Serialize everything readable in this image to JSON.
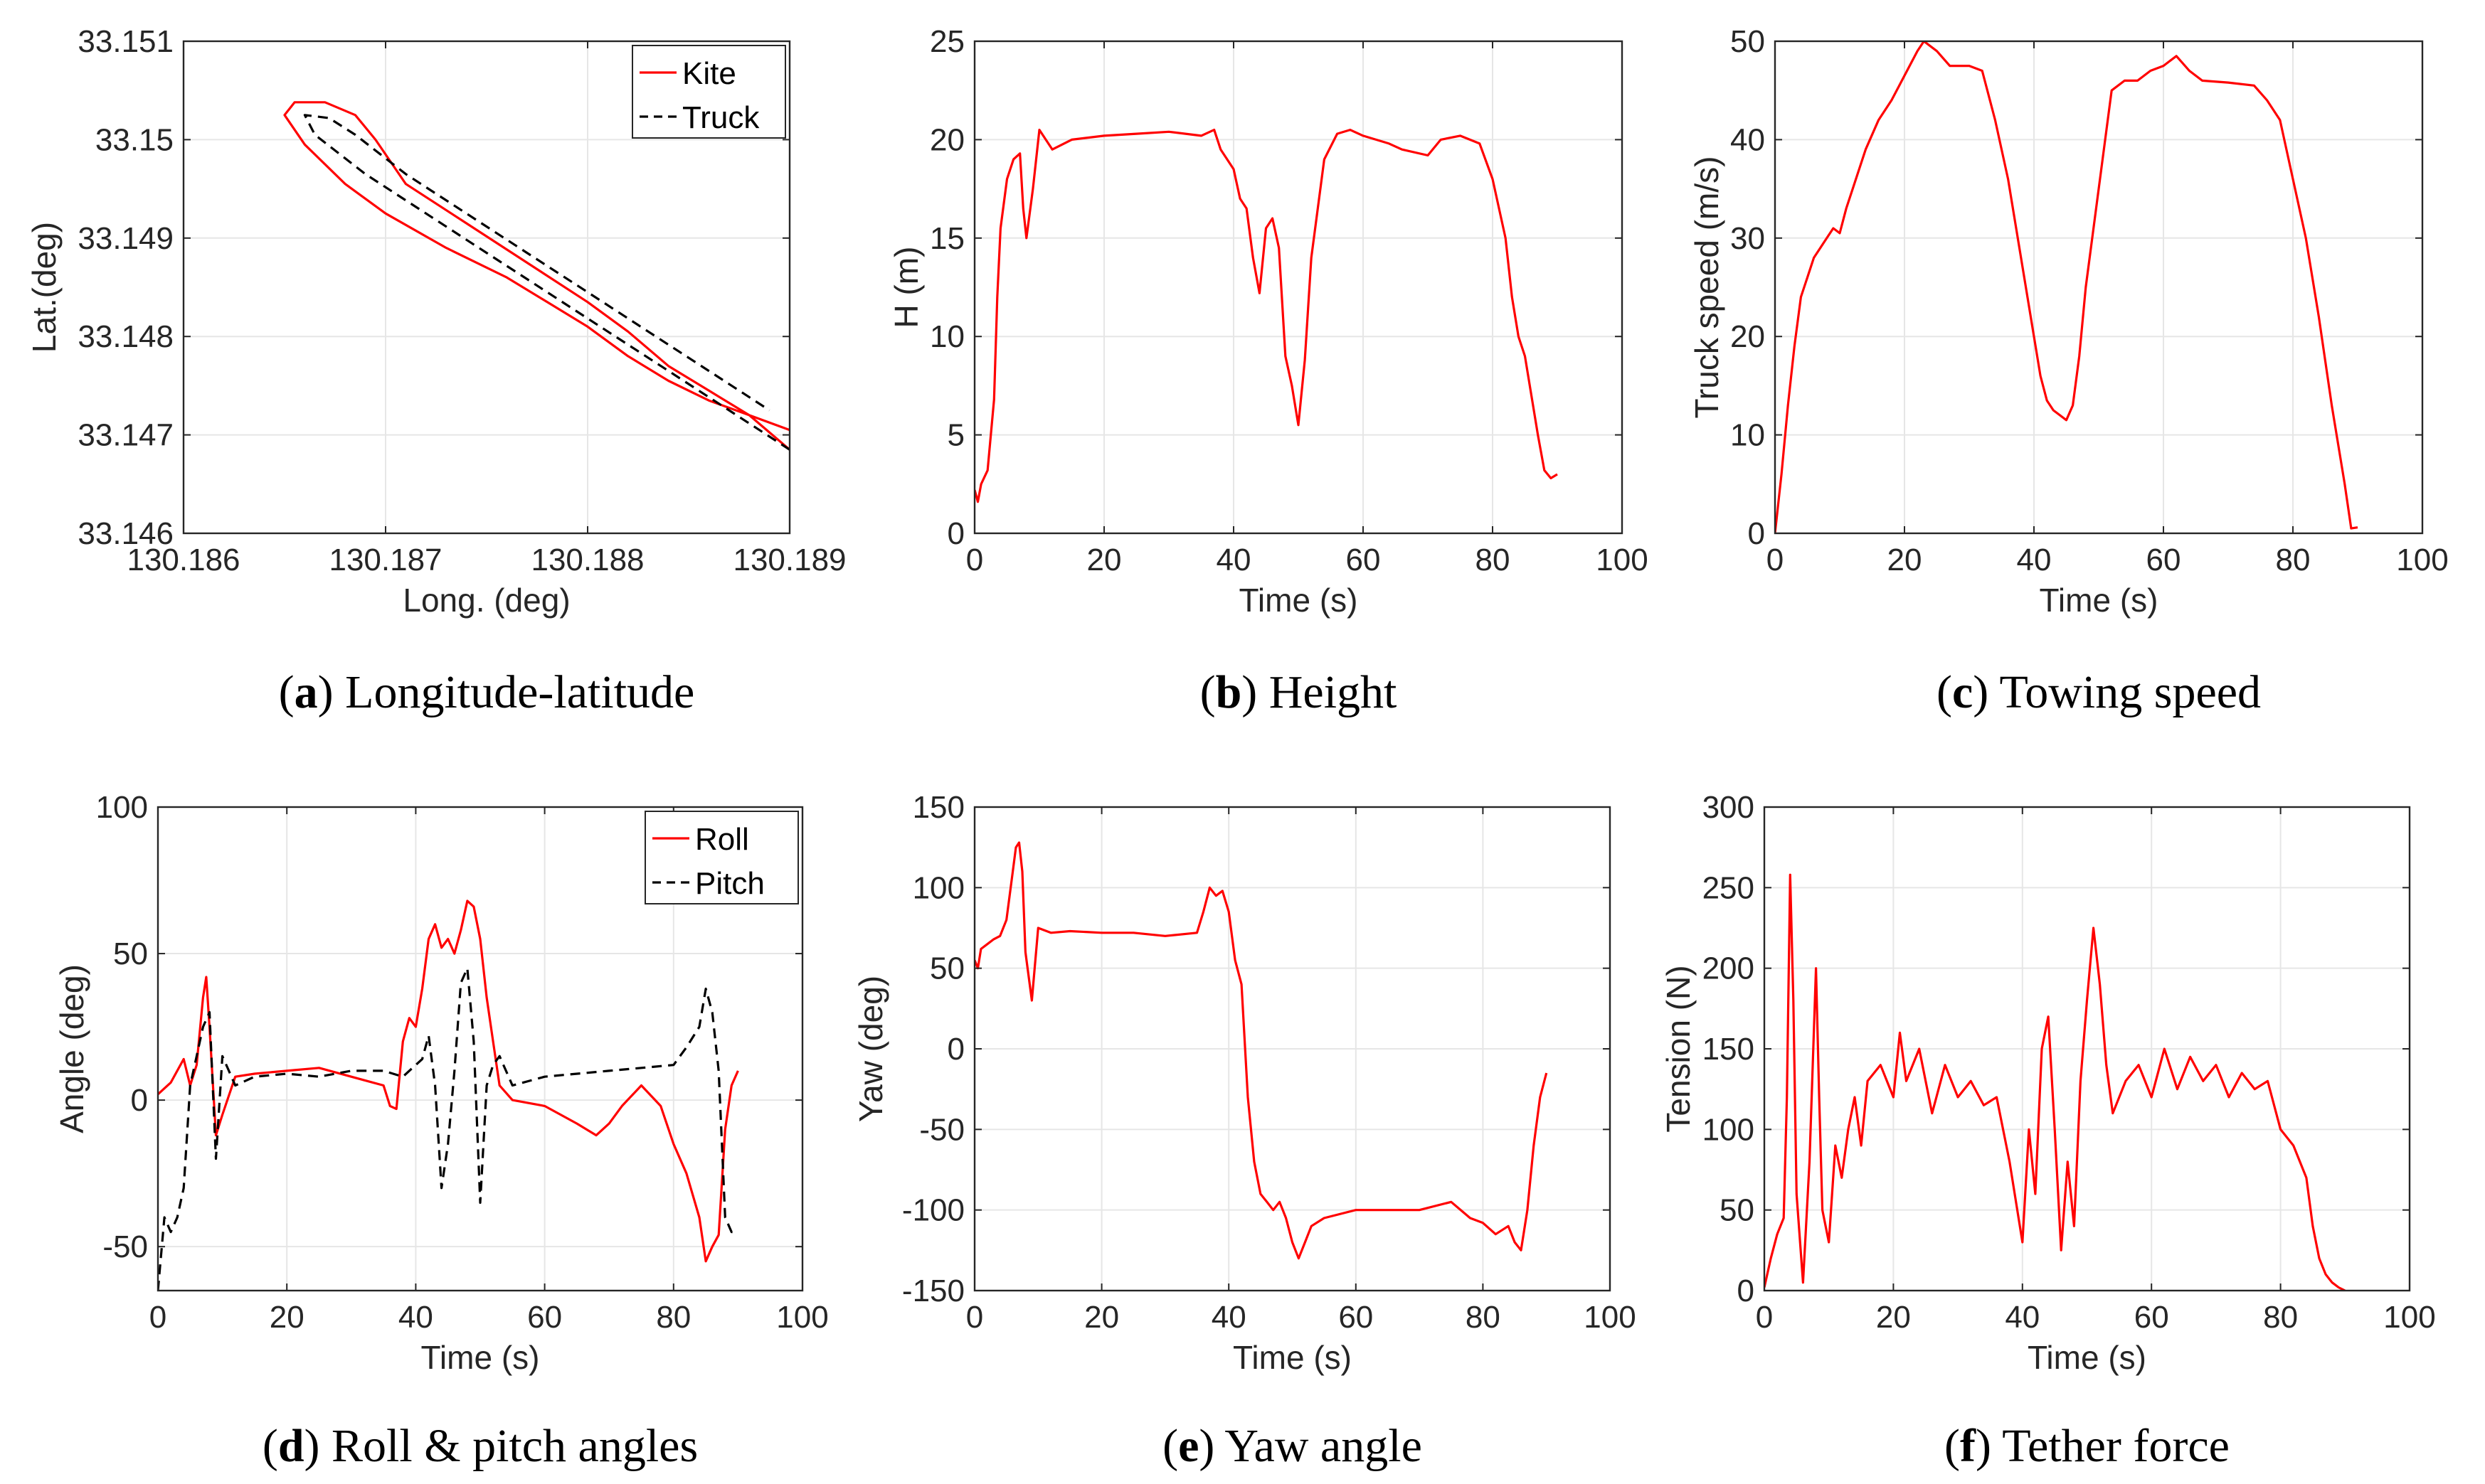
{
  "chart_data": [
    {
      "id": "a",
      "type": "line",
      "caption_letter": "a",
      "caption_text": "Longitude-latitude",
      "xlabel": "Long. (deg)",
      "ylabel": "Lat.(deg)",
      "xlim": [
        130.186,
        130.189
      ],
      "ylim": [
        33.146,
        33.151
      ],
      "xticks": [
        130.186,
        130.187,
        130.188,
        130.189
      ],
      "xtick_labels": [
        "130.186",
        "130.187",
        "130.188",
        "130.189"
      ],
      "yticks": [
        33.146,
        33.147,
        33.148,
        33.149,
        33.15,
        33.151
      ],
      "ytick_labels": [
        "33.146",
        "33.147",
        "33.148",
        "33.149",
        "33.15",
        "33.151"
      ],
      "legend": "top-right",
      "series": [
        {
          "name": "Kite",
          "color": "#ff0000",
          "style": "solid",
          "x": [
            130.189,
            130.1888,
            130.1886,
            130.1884,
            130.1882,
            130.188,
            130.1878,
            130.1876,
            130.1873,
            130.187,
            130.1868,
            130.1866,
            130.1865,
            130.18655,
            130.1867,
            130.18685,
            130.18695,
            130.1871,
            130.1874,
            130.1877,
            130.188,
            130.1882,
            130.1884,
            130.1886,
            130.1888,
            130.189
          ],
          "y": [
            33.14705,
            33.1472,
            33.14735,
            33.14755,
            33.1478,
            33.1481,
            33.14835,
            33.1486,
            33.1489,
            33.14925,
            33.14955,
            33.14995,
            33.15025,
            33.15038,
            33.15038,
            33.15025,
            33.15,
            33.14955,
            33.14915,
            33.14875,
            33.14835,
            33.14805,
            33.1477,
            33.14745,
            33.1472,
            33.14685
          ]
        },
        {
          "name": "Truck",
          "color": "#000000",
          "style": "dashed",
          "x": [
            130.189,
            130.1887,
            130.1884,
            130.1881,
            130.1878,
            130.1875,
            130.1872,
            130.1869,
            130.18665,
            130.1866,
            130.18672,
            130.18685,
            130.1871,
            130.1874,
            130.1877,
            130.188,
            130.1883,
            130.1886,
            130.1889
          ],
          "y": [
            33.14685,
            33.14725,
            33.14765,
            33.14805,
            33.14845,
            33.14885,
            33.14925,
            33.14965,
            33.15005,
            33.15025,
            33.15022,
            33.15005,
            33.14965,
            33.14925,
            33.14885,
            33.14845,
            33.14805,
            33.14765,
            33.14725
          ]
        }
      ]
    },
    {
      "id": "b",
      "type": "line",
      "caption_letter": "b",
      "caption_text": "Height",
      "xlabel": "Time (s)",
      "ylabel": "H (m)",
      "xlim": [
        0,
        100
      ],
      "ylim": [
        0,
        25
      ],
      "xticks": [
        0,
        20,
        40,
        60,
        80,
        100
      ],
      "xtick_labels": [
        "0",
        "20",
        "40",
        "60",
        "80",
        "100"
      ],
      "yticks": [
        0,
        5,
        10,
        15,
        20,
        25
      ],
      "ytick_labels": [
        "0",
        "5",
        "10",
        "15",
        "20",
        "25"
      ],
      "series": [
        {
          "name": "H",
          "color": "#ff0000",
          "style": "solid",
          "x": [
            0,
            0.5,
            1,
            2,
            3,
            3.5,
            4,
            5,
            6,
            7,
            7.5,
            8,
            9,
            10,
            12,
            15,
            20,
            25,
            30,
            35,
            37,
            38,
            40,
            41,
            42,
            43,
            44,
            45,
            46,
            47,
            48,
            49,
            50,
            51,
            52,
            54,
            56,
            58,
            60,
            62,
            64,
            66,
            70,
            72,
            75,
            78,
            80,
            82,
            83,
            84,
            85,
            86,
            87,
            88,
            89,
            90
          ],
          "y": [
            2.2,
            1.6,
            2.5,
            3.2,
            6.8,
            12,
            15.5,
            18,
            19,
            19.3,
            16.5,
            15,
            17.5,
            20.5,
            19.5,
            20,
            20.2,
            20.3,
            20.4,
            20.2,
            20.5,
            19.5,
            18.5,
            17,
            16.5,
            14,
            12.2,
            15.5,
            16,
            14.5,
            9,
            7.5,
            5.5,
            8.8,
            14,
            19,
            20.3,
            20.5,
            20.2,
            20,
            19.8,
            19.5,
            19.2,
            20,
            20.2,
            19.8,
            18,
            15,
            12,
            10,
            9,
            7,
            5,
            3.2,
            2.8,
            3.0
          ]
        }
      ]
    },
    {
      "id": "c",
      "type": "line",
      "caption_letter": "c",
      "caption_text": "Towing speed",
      "xlabel": "Time (s)",
      "ylabel": "Truck speed (m/s)",
      "xlim": [
        0,
        100
      ],
      "ylim": [
        0,
        50
      ],
      "xticks": [
        0,
        20,
        40,
        60,
        80,
        100
      ],
      "xtick_labels": [
        "0",
        "20",
        "40",
        "60",
        "80",
        "100"
      ],
      "yticks": [
        0,
        10,
        20,
        30,
        40,
        50
      ],
      "ytick_labels": [
        "0",
        "10",
        "20",
        "30",
        "40",
        "50"
      ],
      "series": [
        {
          "name": "Truck speed",
          "color": "#ff0000",
          "style": "solid",
          "x": [
            0,
            1,
            2,
            3,
            4,
            5,
            6,
            8,
            9,
            10,
            11,
            12,
            14,
            16,
            18,
            20,
            22,
            23,
            25,
            27,
            30,
            32,
            34,
            36,
            38,
            40,
            41,
            42,
            43,
            44,
            45,
            46,
            47,
            48,
            50,
            52,
            54,
            56,
            58,
            60,
            62,
            64,
            66,
            70,
            74,
            76,
            78,
            80,
            82,
            84,
            86,
            88,
            89,
            90
          ],
          "y": [
            0,
            6,
            13,
            19,
            24,
            26,
            28,
            30,
            31,
            30.5,
            33,
            35,
            39,
            42,
            44,
            46.5,
            49,
            50,
            49,
            47.5,
            47.5,
            47,
            42,
            36,
            28,
            20,
            16,
            13.5,
            12.5,
            12,
            11.5,
            13,
            18,
            25,
            35,
            45,
            46,
            46,
            47,
            47.5,
            48.5,
            47,
            46,
            45.8,
            45.5,
            44,
            42,
            36,
            30,
            22,
            13,
            5,
            0.5,
            0.6
          ]
        }
      ]
    },
    {
      "id": "d",
      "type": "line",
      "caption_letter": "d",
      "caption_text": "Roll & pitch angles",
      "xlabel": "Time (s)",
      "ylabel": "Angle (deg)",
      "xlim": [
        0,
        100
      ],
      "ylim": [
        -65,
        100
      ],
      "xticks": [
        0,
        20,
        40,
        60,
        80,
        100
      ],
      "xtick_labels": [
        "0",
        "20",
        "40",
        "60",
        "80",
        "100"
      ],
      "yticks": [
        -50,
        0,
        50,
        100
      ],
      "ytick_labels": [
        "-50",
        "0",
        "50",
        "100"
      ],
      "legend": "top-right",
      "series": [
        {
          "name": "Roll",
          "color": "#ff0000",
          "style": "solid",
          "x": [
            0,
            2,
            4,
            5,
            6,
            7,
            7.5,
            8,
            9,
            10,
            12,
            15,
            20,
            25,
            30,
            35,
            36,
            37,
            38,
            39,
            40,
            41,
            42,
            43,
            44,
            45,
            46,
            47,
            48,
            49,
            50,
            51,
            52,
            53,
            55,
            60,
            65,
            68,
            70,
            72,
            75,
            78,
            80,
            82,
            84,
            85,
            86,
            87,
            88,
            89,
            90
          ],
          "y": [
            2,
            6,
            14,
            5,
            12,
            35,
            42,
            25,
            -12,
            -5,
            8,
            9,
            10,
            11,
            8,
            5,
            -2,
            -3,
            20,
            28,
            25,
            38,
            55,
            60,
            52,
            55,
            50,
            58,
            68,
            66,
            55,
            35,
            20,
            5,
            0,
            -2,
            -8,
            -12,
            -8,
            -2,
            5,
            -2,
            -15,
            -25,
            -40,
            -55,
            -50,
            -46,
            -10,
            5,
            10
          ]
        },
        {
          "name": "Pitch",
          "color": "#000000",
          "style": "dashed",
          "x": [
            0,
            1,
            2,
            3,
            4,
            5,
            6,
            7,
            8,
            9,
            10,
            11,
            12,
            15,
            20,
            25,
            30,
            35,
            38,
            40,
            41,
            42,
            43,
            44,
            45,
            46,
            47,
            48,
            49,
            50,
            51,
            52,
            53,
            55,
            60,
            70,
            80,
            82,
            84,
            85,
            86,
            87,
            88,
            89,
            90
          ],
          "y": [
            -65,
            -40,
            -45,
            -40,
            -30,
            5,
            15,
            25,
            30,
            -20,
            15,
            10,
            5,
            8,
            9,
            8,
            10,
            10,
            8,
            12,
            14,
            22,
            5,
            -30,
            -15,
            10,
            40,
            45,
            20,
            -35,
            5,
            12,
            15,
            5,
            8,
            10,
            12,
            18,
            25,
            38,
            30,
            10,
            -40,
            -45,
            -45
          ]
        }
      ]
    },
    {
      "id": "e",
      "type": "line",
      "caption_letter": "e",
      "caption_text": "Yaw angle",
      "xlabel": "Time (s)",
      "ylabel": "Yaw (deg)",
      "xlim": [
        0,
        100
      ],
      "ylim": [
        -150,
        150
      ],
      "xticks": [
        0,
        20,
        40,
        60,
        80,
        100
      ],
      "xtick_labels": [
        "0",
        "20",
        "40",
        "60",
        "80",
        "100"
      ],
      "yticks": [
        -150,
        -100,
        -50,
        0,
        50,
        100,
        150
      ],
      "ytick_labels": [
        "-150",
        "-100",
        "-50",
        "0",
        "50",
        "100",
        "150"
      ],
      "series": [
        {
          "name": "Yaw",
          "color": "#ff0000",
          "style": "solid",
          "x": [
            0,
            0.5,
            1,
            2,
            3,
            4,
            5,
            6,
            6.5,
            7,
            7.5,
            8,
            9,
            10,
            12,
            15,
            20,
            25,
            30,
            35,
            36,
            37,
            38,
            39,
            40,
            41,
            42,
            43,
            44,
            45,
            46,
            47,
            48,
            49,
            50,
            51,
            52,
            53,
            55,
            60,
            65,
            70,
            75,
            78,
            80,
            82,
            84,
            85,
            86,
            87,
            88,
            89,
            90
          ],
          "y": [
            55,
            50,
            62,
            65,
            68,
            70,
            80,
            110,
            125,
            128,
            110,
            60,
            30,
            75,
            72,
            73,
            72,
            72,
            70,
            72,
            85,
            100,
            95,
            98,
            85,
            55,
            40,
            -30,
            -70,
            -90,
            -95,
            -100,
            -95,
            -105,
            -120,
            -130,
            -120,
            -110,
            -105,
            -100,
            -100,
            -100,
            -95,
            -105,
            -108,
            -115,
            -110,
            -120,
            -125,
            -100,
            -60,
            -30,
            -15
          ]
        }
      ]
    },
    {
      "id": "f",
      "type": "line",
      "caption_letter": "f",
      "caption_text": "Tether force",
      "xlabel": "Time (s)",
      "ylabel": "Tension (N)",
      "xlim": [
        0,
        100
      ],
      "ylim": [
        0,
        300
      ],
      "xticks": [
        0,
        20,
        40,
        60,
        80,
        100
      ],
      "xtick_labels": [
        "0",
        "20",
        "40",
        "60",
        "80",
        "100"
      ],
      "yticks": [
        0,
        50,
        100,
        150,
        200,
        250,
        300
      ],
      "ytick_labels": [
        "0",
        "50",
        "100",
        "150",
        "200",
        "250",
        "300"
      ],
      "series": [
        {
          "name": "Tension",
          "color": "#ff0000",
          "style": "solid",
          "x": [
            0,
            1,
            2,
            3,
            3.5,
            4,
            4.5,
            5,
            6,
            7,
            8,
            8.5,
            9,
            10,
            11,
            12,
            13,
            14,
            15,
            16,
            18,
            20,
            21,
            22,
            24,
            26,
            28,
            30,
            32,
            34,
            36,
            38,
            40,
            41,
            42,
            43,
            44,
            45,
            46,
            47,
            48,
            49,
            50,
            51,
            52,
            53,
            54,
            56,
            58,
            60,
            62,
            64,
            66,
            68,
            70,
            72,
            74,
            76,
            78,
            80,
            82,
            84,
            85,
            86,
            87,
            88,
            89,
            90
          ],
          "y": [
            2,
            20,
            35,
            45,
            120,
            258,
            180,
            60,
            5,
            80,
            200,
            120,
            50,
            30,
            90,
            70,
            100,
            120,
            90,
            130,
            140,
            120,
            160,
            130,
            150,
            110,
            140,
            120,
            130,
            115,
            120,
            80,
            30,
            100,
            60,
            150,
            170,
            100,
            25,
            80,
            40,
            130,
            180,
            225,
            190,
            140,
            110,
            130,
            140,
            120,
            150,
            125,
            145,
            130,
            140,
            120,
            135,
            125,
            130,
            100,
            90,
            70,
            40,
            20,
            10,
            5,
            2,
            0
          ]
        }
      ]
    }
  ]
}
